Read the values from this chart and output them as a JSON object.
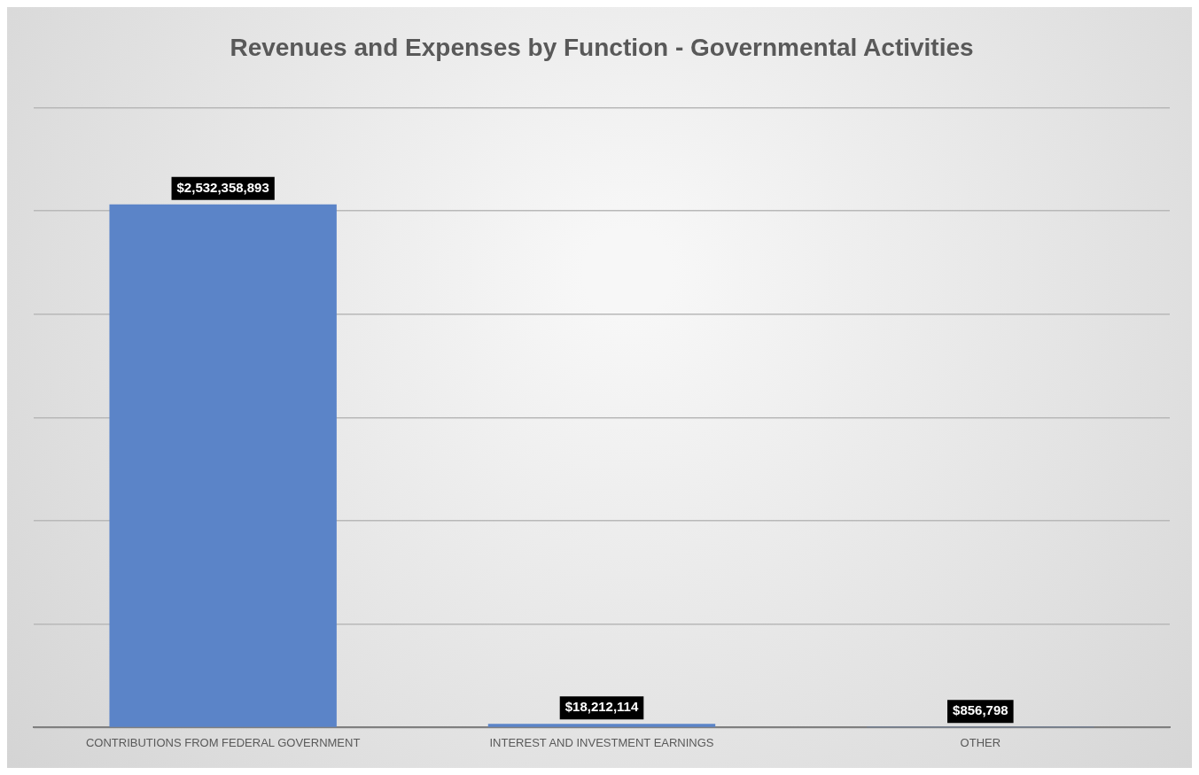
{
  "chart_data": {
    "type": "bar",
    "title": "Revenues and Expenses by Function - Governmental Activities",
    "categories": [
      "CONTRIBUTIONS FROM FEDERAL GOVERNMENT",
      "INTEREST AND INVESTMENT EARNINGS",
      "OTHER"
    ],
    "values": [
      2532358893,
      18212114,
      856798
    ],
    "value_labels": [
      "$2,532,358,893",
      "$18,212,114",
      "$856,798"
    ],
    "color": "#5b84c8",
    "tick_labels": "x",
    "grid": "y",
    "legend": false
  }
}
